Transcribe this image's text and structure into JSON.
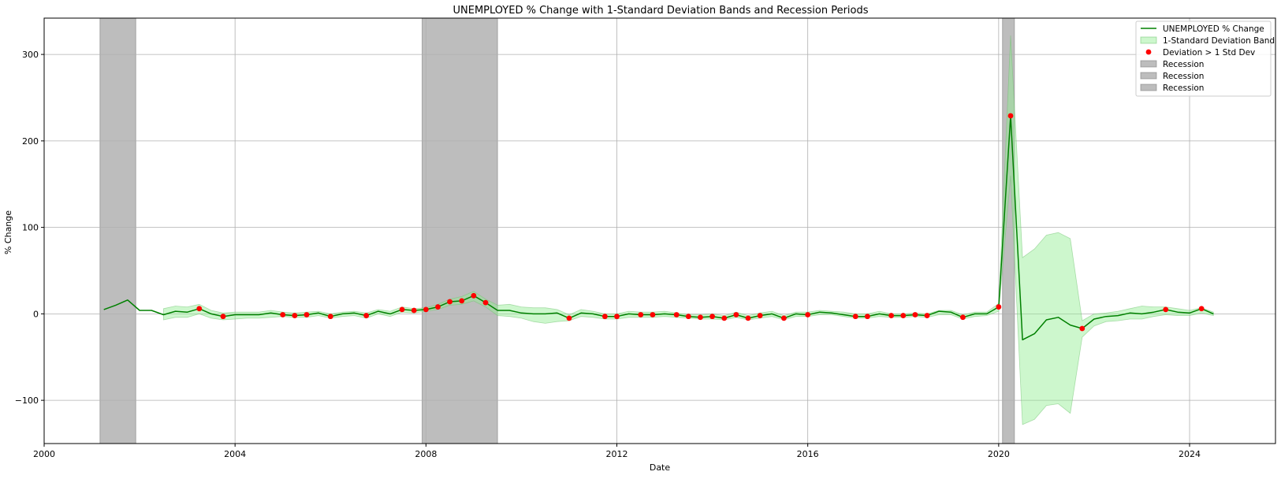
{
  "colors": {
    "line": "#008000",
    "band": "#90ee90",
    "band_edge": "#6cbf6c",
    "points": "#ff0000",
    "recession": "#808080",
    "grid": "#b0b0b0",
    "axis": "#000000"
  },
  "chart_data": {
    "type": "line",
    "title": "UNEMPLOYED % Change with 1-Standard Deviation Bands and Recession Periods",
    "xlabel": "Date",
    "ylabel": "% Change",
    "xlim": [
      2000.0,
      2025.8
    ],
    "ylim": [
      -150,
      342
    ],
    "x_ticks": [
      2000,
      2004,
      2008,
      2012,
      2016,
      2020,
      2024
    ],
    "x_tick_labels": [
      "2000",
      "2004",
      "2008",
      "2012",
      "2016",
      "2020",
      "2024"
    ],
    "y_ticks": [
      -100,
      0,
      100,
      200,
      300
    ],
    "y_tick_labels": [
      "−100",
      "0",
      "100",
      "200",
      "300"
    ],
    "grid": true,
    "legend_position": "top-right",
    "legend": [
      {
        "label": "UNEMPLOYED % Change",
        "kind": "line"
      },
      {
        "label": "1-Standard Deviation Band",
        "kind": "band"
      },
      {
        "label": "Deviation > 1 Std Dev",
        "kind": "point"
      },
      {
        "label": "Recession",
        "kind": "recession"
      },
      {
        "label": "Recession",
        "kind": "recession"
      },
      {
        "label": "Recession",
        "kind": "recession"
      }
    ],
    "recessions": [
      [
        2001.17,
        2001.92
      ],
      [
        2007.92,
        2009.5
      ],
      [
        2020.08,
        2020.33
      ]
    ],
    "series": [
      {
        "name": "UNEMPLOYED % Change",
        "x": [
          2001.25,
          2001.5,
          2001.75,
          2002.0,
          2002.25,
          2002.5,
          2002.75,
          2003.0,
          2003.25,
          2003.5,
          2003.75,
          2004.0,
          2004.25,
          2004.5,
          2004.75,
          2005.0,
          2005.25,
          2005.5,
          2005.75,
          2006.0,
          2006.25,
          2006.5,
          2006.75,
          2007.0,
          2007.25,
          2007.5,
          2007.75,
          2008.0,
          2008.25,
          2008.5,
          2008.75,
          2009.0,
          2009.25,
          2009.5,
          2009.75,
          2010.0,
          2010.25,
          2010.5,
          2010.75,
          2011.0,
          2011.25,
          2011.5,
          2011.75,
          2012.0,
          2012.25,
          2012.5,
          2012.75,
          2013.0,
          2013.25,
          2013.5,
          2013.75,
          2014.0,
          2014.25,
          2014.5,
          2014.75,
          2015.0,
          2015.25,
          2015.5,
          2015.75,
          2016.0,
          2016.25,
          2016.5,
          2016.75,
          2017.0,
          2017.25,
          2017.5,
          2017.75,
          2018.0,
          2018.25,
          2018.5,
          2018.75,
          2019.0,
          2019.25,
          2019.5,
          2019.75,
          2020.0,
          2020.25,
          2020.5,
          2020.75,
          2021.0,
          2021.25,
          2021.5,
          2021.75,
          2022.0,
          2022.25,
          2022.5,
          2022.75,
          2023.0,
          2023.25,
          2023.5,
          2023.75,
          2024.0,
          2024.25,
          2024.5
        ],
        "y": [
          5,
          10,
          16,
          4,
          4,
          -1,
          3,
          2,
          6,
          0,
          -3,
          -1,
          -1,
          -1,
          1,
          -1,
          -2,
          -1,
          1,
          -3,
          0,
          1,
          -2,
          3,
          0,
          5,
          4,
          5,
          8,
          14,
          15,
          21,
          13,
          4,
          4,
          1,
          0,
          0,
          1,
          -5,
          1,
          0,
          -3,
          -3,
          0,
          -1,
          -1,
          0,
          -1,
          -3,
          -4,
          -3,
          -5,
          -1,
          -5,
          -2,
          0,
          -5,
          0,
          -1,
          2,
          1,
          -1,
          -3,
          -3,
          0,
          -2,
          -2,
          -1,
          -2,
          3,
          2,
          -4,
          0,
          0,
          8,
          229,
          -30,
          -23,
          -7,
          -4,
          -13,
          -17,
          -6,
          -3,
          -2,
          1,
          0,
          2,
          5,
          2,
          1,
          6,
          0
        ],
        "band_lower": [
          null,
          null,
          null,
          null,
          null,
          -7,
          -4,
          -4,
          0,
          -5,
          -7,
          -6,
          -5,
          -5,
          -4,
          -3,
          -4,
          -4,
          -2,
          -5,
          -3,
          -2,
          -5,
          0,
          -3,
          2,
          1,
          3,
          5,
          10,
          11,
          15,
          8,
          -2,
          -3,
          -5,
          -9,
          -11,
          -9,
          -8,
          -3,
          -4,
          -6,
          -6,
          -4,
          -4,
          -4,
          -3,
          -4,
          -5,
          -6,
          -6,
          -7,
          -4,
          -7,
          -5,
          -3,
          -7,
          -3,
          -3,
          -1,
          -1,
          -3,
          -5,
          -5,
          -3,
          -4,
          -4,
          -3,
          -4,
          -1,
          -1,
          -6,
          -3,
          -2,
          3,
          160,
          -128,
          -122,
          -106,
          -104,
          -115,
          -27,
          -14,
          -9,
          -8,
          -6,
          -6,
          -3,
          -1,
          -2,
          -2,
          1,
          -2
        ],
        "band_upper": [
          null,
          null,
          null,
          null,
          null,
          6,
          9,
          8,
          11,
          4,
          1,
          2,
          2,
          2,
          4,
          2,
          1,
          2,
          3,
          0,
          2,
          3,
          1,
          5,
          3,
          8,
          6,
          7,
          11,
          17,
          20,
          26,
          17,
          10,
          11,
          8,
          7,
          7,
          5,
          -1,
          5,
          3,
          0,
          0,
          3,
          2,
          2,
          3,
          1,
          -1,
          -1,
          0,
          -2,
          2,
          -2,
          1,
          3,
          -2,
          2,
          2,
          4,
          3,
          2,
          0,
          0,
          3,
          0,
          0,
          1,
          0,
          4,
          4,
          -1,
          2,
          2,
          12,
          322,
          65,
          75,
          91,
          94,
          87,
          -8,
          0,
          1,
          3,
          6,
          9,
          8,
          8,
          6,
          4,
          7,
          2
        ]
      }
    ],
    "highlight_points": {
      "name": "Deviation > 1 Std Dev",
      "x": [
        2003.25,
        2003.75,
        2005.0,
        2005.25,
        2005.5,
        2006.0,
        2006.75,
        2007.5,
        2007.75,
        2008.0,
        2008.25,
        2008.5,
        2008.75,
        2009.0,
        2009.25,
        2011.0,
        2011.75,
        2012.0,
        2012.5,
        2012.75,
        2013.25,
        2013.5,
        2013.75,
        2014.0,
        2014.25,
        2014.5,
        2014.75,
        2015.0,
        2015.5,
        2016.0,
        2017.0,
        2017.25,
        2017.75,
        2018.0,
        2018.25,
        2018.5,
        2019.25,
        2020.0,
        2020.25,
        2021.75,
        2023.5,
        2024.25
      ],
      "y": [
        6,
        -3,
        -1,
        -2,
        -1,
        -3,
        -2,
        5,
        4,
        5,
        8,
        14,
        15,
        21,
        13,
        -5,
        -3,
        -3,
        -1,
        -1,
        -1,
        -3,
        -4,
        -3,
        -5,
        -1,
        -5,
        -2,
        -5,
        -1,
        -3,
        -3,
        -2,
        -2,
        -1,
        -2,
        -4,
        8,
        229,
        -17,
        5,
        6
      ]
    }
  }
}
